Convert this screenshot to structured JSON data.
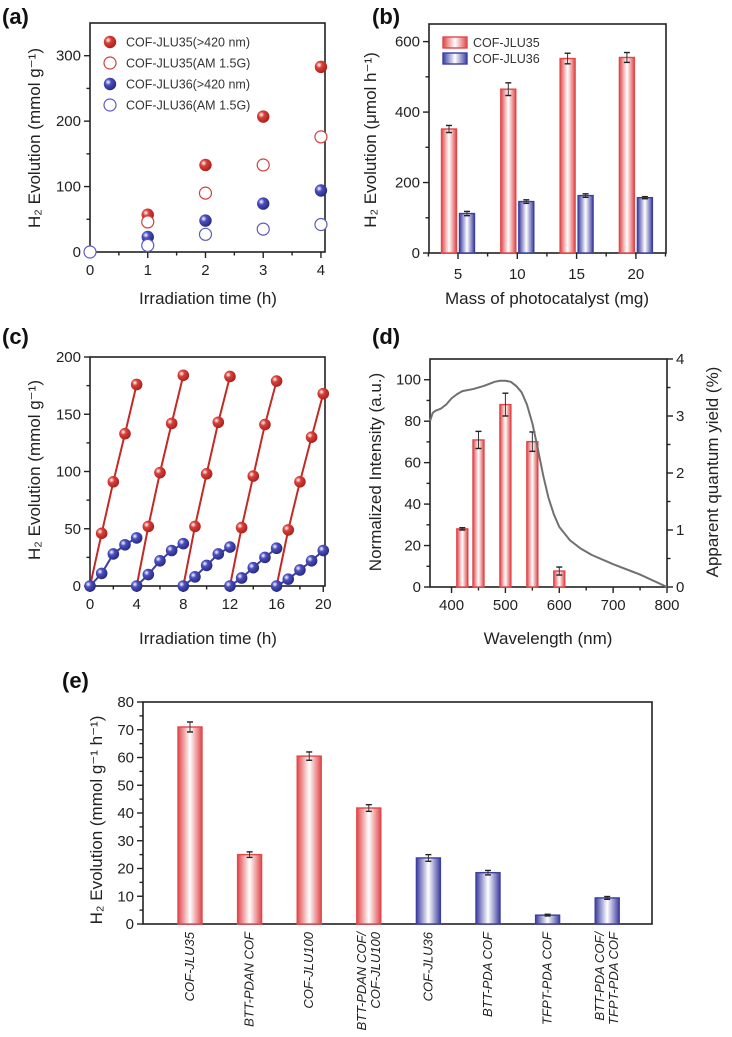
{
  "colors": {
    "red": "#e0484a",
    "red_dark": "#c22a26",
    "blue": "#3d3fa0",
    "curve": "#707070",
    "axis": "#222222"
  },
  "chart_data": [
    {
      "panel": "(a)",
      "type": "scatter",
      "xlabel": "Irradiation time (h)",
      "ylabel": "H₂ Evolution (mmol g⁻¹)",
      "xlim": [
        0,
        4
      ],
      "ylim": [
        0,
        350
      ],
      "xticks": [
        "0",
        "1",
        "2",
        "3",
        "4"
      ],
      "yticks": [
        "0",
        "100",
        "200",
        "300"
      ],
      "legend": "top-left",
      "series": [
        {
          "name": "COF-JLU35(>420 nm)",
          "style": "filled",
          "color": "red",
          "x": [
            1,
            2,
            3,
            4
          ],
          "y": [
            57,
            133,
            207,
            283
          ]
        },
        {
          "name": "COF-JLU35(AM 1.5G)",
          "style": "open",
          "color": "red",
          "x": [
            1,
            2,
            3,
            4
          ],
          "y": [
            46,
            90,
            133,
            176
          ]
        },
        {
          "name": "COF-JLU36(>420 nm)",
          "style": "filled",
          "color": "blue",
          "x": [
            1,
            2,
            3,
            4
          ],
          "y": [
            23,
            48,
            74,
            94
          ]
        },
        {
          "name": "COF-JLU36(AM 1.5G)",
          "style": "open",
          "color": "blue",
          "x": [
            0,
            1,
            2,
            3,
            4
          ],
          "y": [
            0,
            10,
            27,
            35,
            42
          ]
        }
      ]
    },
    {
      "panel": "(b)",
      "type": "bar",
      "xlabel": "Mass of photocatalyst (mg)",
      "ylabel": "H₂ Evolution (μmol h⁻¹)",
      "ylim": [
        0,
        650
      ],
      "yticks": [
        "0",
        "200",
        "400",
        "600"
      ],
      "categories": [
        "5",
        "10",
        "15",
        "20"
      ],
      "legend": "top-left",
      "series": [
        {
          "name": "COF-JLU35",
          "color": "red",
          "values": [
            352,
            465,
            552,
            555
          ],
          "errors": [
            10,
            18,
            15,
            14
          ]
        },
        {
          "name": "COF-JLU36",
          "color": "blue",
          "values": [
            112,
            146,
            163,
            157
          ],
          "errors": [
            6,
            5,
            5,
            3
          ]
        }
      ]
    },
    {
      "panel": "(c)",
      "type": "line",
      "xlabel": "Irradiation time (h)",
      "ylabel": "H₂ Evolution (mmol g⁻¹)",
      "xlim": [
        0,
        20
      ],
      "ylim": [
        0,
        200
      ],
      "xticks": [
        "0",
        "4",
        "8",
        "12",
        "16",
        "20"
      ],
      "yticks": [
        "0",
        "50",
        "100",
        "150",
        "200"
      ],
      "series": [
        {
          "color": "red",
          "cycles": [
            {
              "x": [
                0,
                1,
                2,
                3,
                4
              ],
              "y": [
                0,
                46,
                91,
                133,
                176
              ]
            },
            {
              "x": [
                4,
                5,
                6,
                7,
                8
              ],
              "y": [
                0,
                52,
                99,
                142,
                184
              ]
            },
            {
              "x": [
                8,
                9,
                10,
                11,
                12
              ],
              "y": [
                0,
                52,
                98,
                143,
                183
              ]
            },
            {
              "x": [
                12,
                13,
                14,
                15,
                16
              ],
              "y": [
                0,
                51,
                96,
                141,
                179
              ]
            },
            {
              "x": [
                16,
                17,
                18,
                19,
                20
              ],
              "y": [
                0,
                49,
                91,
                130,
                168
              ]
            }
          ]
        },
        {
          "color": "blue",
          "cycles": [
            {
              "x": [
                0,
                1,
                2,
                3,
                4
              ],
              "y": [
                0,
                11,
                28,
                36,
                42
              ]
            },
            {
              "x": [
                4,
                5,
                6,
                7,
                8
              ],
              "y": [
                0,
                10,
                22,
                31,
                37
              ]
            },
            {
              "x": [
                8,
                9,
                10,
                11,
                12
              ],
              "y": [
                0,
                8,
                18,
                28,
                34
              ]
            },
            {
              "x": [
                12,
                13,
                14,
                15,
                16
              ],
              "y": [
                0,
                7,
                16,
                25,
                33
              ]
            },
            {
              "x": [
                16,
                17,
                18,
                19,
                20
              ],
              "y": [
                0,
                6,
                14,
                22,
                31
              ]
            }
          ]
        }
      ]
    },
    {
      "panel": "(d)",
      "type": "bar+line",
      "xlabel": "Wavelength (nm)",
      "ylabel": "Normalized Intensity (a.u.)",
      "ylabel_right": "Apparent quantum yield (%)",
      "xlim": [
        360,
        800
      ],
      "ylim": [
        0,
        110
      ],
      "ylim_right": [
        0,
        4
      ],
      "xticks": [
        "400",
        "500",
        "600",
        "700",
        "800"
      ],
      "yticks": [
        "0",
        "20",
        "40",
        "60",
        "80",
        "100"
      ],
      "yticks_right": [
        "0",
        "1",
        "2",
        "3",
        "4"
      ],
      "bars": {
        "axis": "right",
        "color": "red",
        "x": [
          420,
          450,
          500,
          550,
          600
        ],
        "values": [
          1.02,
          2.58,
          3.2,
          2.55,
          0.28
        ],
        "errors": [
          0.02,
          0.15,
          0.2,
          0.17,
          0.07
        ]
      },
      "curve": {
        "axis": "left",
        "color": "curve",
        "x": [
          360,
          365,
          370,
          380,
          390,
          400,
          410,
          420,
          440,
          460,
          480,
          490,
          500,
          510,
          520,
          530,
          540,
          550,
          560,
          570,
          580,
          590,
          600,
          620,
          640,
          660,
          700,
          750,
          800
        ],
        "y": [
          80,
          84,
          85,
          86,
          88,
          91,
          93,
          94.5,
          95.5,
          97,
          99,
          99.5,
          99.5,
          99,
          97,
          94,
          88,
          79,
          67,
          54,
          43,
          35,
          29,
          22.5,
          18.5,
          15.5,
          11,
          6,
          0
        ]
      }
    },
    {
      "panel": "(e)",
      "type": "bar",
      "xlabel": "",
      "ylabel": "H₂ Evolution (mmol g⁻¹ h⁻¹)",
      "ylim": [
        0,
        80
      ],
      "yticks": [
        "0",
        "10",
        "20",
        "30",
        "40",
        "50",
        "60",
        "70",
        "80"
      ],
      "categories": [
        [
          "COF-JLU35"
        ],
        [
          "BTT-PDAN COF"
        ],
        [
          "COF-JLU100"
        ],
        [
          "BTT-PDAN COF/",
          "COF-JLU100"
        ],
        [
          "COF-JLU36"
        ],
        [
          "BTT-PDA COF"
        ],
        [
          "TFPT-PDA COF"
        ],
        [
          "BTT-PDA COF/",
          "TFPT-PDA COF"
        ]
      ],
      "bar_colors": [
        "red",
        "red",
        "red",
        "red",
        "blue",
        "blue",
        "blue",
        "blue"
      ],
      "values": [
        71,
        25,
        60.5,
        41.8,
        23.8,
        18.5,
        3.2,
        9.4
      ],
      "errors": [
        1.8,
        1.0,
        1.5,
        1.2,
        1.2,
        0.8,
        0.3,
        0.5
      ]
    }
  ]
}
